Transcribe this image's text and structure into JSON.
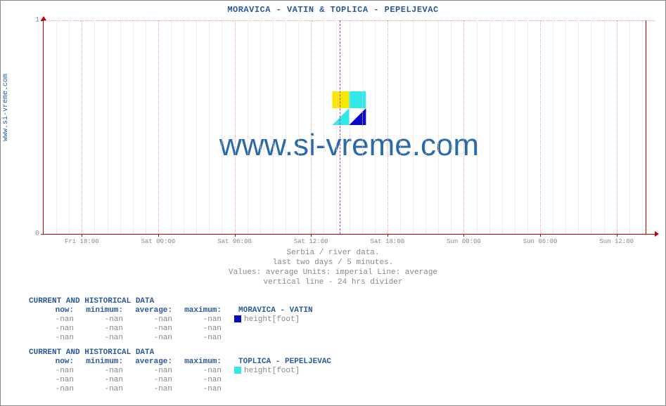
{
  "site_label": "www.si-vreme.com",
  "chart": {
    "title": "MORAVICA -  VATIN &  TOPLICA -  PEPELJEVAC",
    "watermark_text": "www.si-vreme.com",
    "type": "line",
    "background_color": "#ffffff",
    "axis_color": "#c00000",
    "grid_major_color": "#e8a0a0",
    "grid_minor_color": "#f2d0d0",
    "divider_color": "#c030c0",
    "title_color": "#2a5a9a",
    "caption_color": "#888888",
    "ylim": [
      0,
      1
    ],
    "yticks": [
      0,
      1
    ],
    "x_major_ticks": [
      "Fri 18:00",
      "Sat 00:00",
      "Sat 06:00",
      "Sat 12:00",
      "Sat 18:00",
      "Sun 00:00",
      "Sun 06:00",
      "Sun 12:00"
    ],
    "x_major_pos_pct": [
      6.25,
      18.75,
      31.25,
      43.75,
      56.25,
      68.75,
      81.25,
      93.75
    ],
    "x_minor_per_major": 5,
    "divider_pos_pct": 48.5,
    "end_pos_pct": 98.5,
    "caption_lines": [
      "Serbia / river data.",
      "last two days / 5 minutes.",
      "Values: average  Units: imperial  Line: average",
      "vertical line - 24 hrs  divider"
    ],
    "logo_colors": {
      "yellow": "#f8e800",
      "blue": "#0808c8",
      "cyan": "#30e8e8"
    }
  },
  "tables": [
    {
      "title": "CURRENT AND HISTORICAL DATA",
      "headers": [
        "now:",
        "minimum:",
        "average:",
        "maximum:"
      ],
      "station": "MORAVICA -  VATIN",
      "series_label": "height[foot]",
      "swatch_color": "#0808c8",
      "rows": [
        [
          "-nan",
          "-nan",
          "-nan",
          "-nan"
        ],
        [
          "-nan",
          "-nan",
          "-nan",
          "-nan"
        ],
        [
          "-nan",
          "-nan",
          "-nan",
          "-nan"
        ]
      ]
    },
    {
      "title": "CURRENT AND HISTORICAL DATA",
      "headers": [
        "now:",
        "minimum:",
        "average:",
        "maximum:"
      ],
      "station": "TOPLICA -  PEPELJEVAC",
      "series_label": "height[foot]",
      "swatch_color": "#30e8e8",
      "rows": [
        [
          "-nan",
          "-nan",
          "-nan",
          "-nan"
        ],
        [
          "-nan",
          "-nan",
          "-nan",
          "-nan"
        ],
        [
          "-nan",
          "-nan",
          "-nan",
          "-nan"
        ]
      ]
    }
  ]
}
